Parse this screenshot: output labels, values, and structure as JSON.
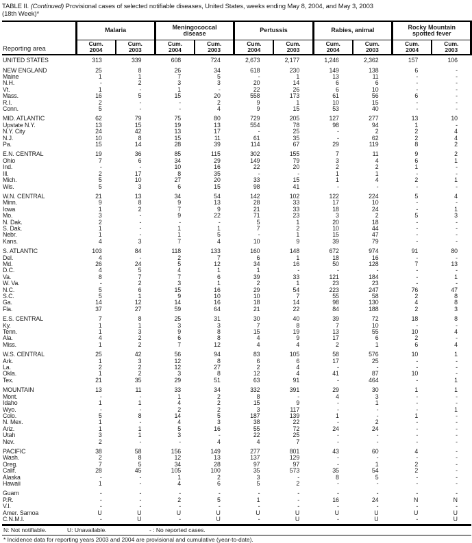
{
  "title": {
    "line1_prefix": "TABLE II. ",
    "line1_italic": "(Continued)",
    "line1_rest": " Provisional cases of selected notifiable diseases, United States, weeks ending May 8, 2004, and May 3, 2003",
    "line2": "(18th Week)*"
  },
  "columns": {
    "reporting_area_label": "Reporting area",
    "cum_label": "Cum.",
    "years": [
      "2004",
      "2003"
    ],
    "groups": [
      {
        "id": "malaria",
        "name": "Malaria"
      },
      {
        "id": "meningococcal-disease",
        "name": "Meningococcal\ndisease"
      },
      {
        "id": "pertussis",
        "name": "Pertussis"
      },
      {
        "id": "rabies-animal",
        "name": "Rabies, animal"
      },
      {
        "id": "rocky-mountain-spotted-fever",
        "name": "Rocky Mountain\nspotted fever"
      }
    ]
  },
  "rows": [
    {
      "area": "UNITED STATES",
      "kind": "total",
      "gap_before": false,
      "values": [
        "313",
        "339",
        "608",
        "724",
        "2,673",
        "2,177",
        "1,246",
        "2,362",
        "157",
        "106"
      ]
    },
    {
      "area": "NEW ENGLAND",
      "kind": "region",
      "gap_before": true,
      "values": [
        "25",
        "8",
        "26",
        "34",
        "618",
        "230",
        "149",
        "138",
        "6",
        "-"
      ]
    },
    {
      "area": "Maine",
      "kind": "state",
      "gap_before": false,
      "values": [
        "1",
        "1",
        "7",
        "5",
        "-",
        "1",
        "13",
        "11",
        "-",
        "-"
      ]
    },
    {
      "area": "N.H.",
      "kind": "state",
      "gap_before": false,
      "values": [
        "-",
        "2",
        "3",
        "3",
        "20",
        "14",
        "6",
        "6",
        "-",
        "-"
      ]
    },
    {
      "area": "Vt.",
      "kind": "state",
      "gap_before": false,
      "values": [
        "1",
        "-",
        "1",
        "-",
        "22",
        "26",
        "6",
        "10",
        "-",
        "-"
      ]
    },
    {
      "area": "Mass.",
      "kind": "state",
      "gap_before": false,
      "values": [
        "16",
        "5",
        "15",
        "20",
        "558",
        "173",
        "61",
        "56",
        "6",
        "-"
      ]
    },
    {
      "area": "R.I.",
      "kind": "state",
      "gap_before": false,
      "values": [
        "2",
        "-",
        "-",
        "2",
        "9",
        "1",
        "10",
        "15",
        "-",
        "-"
      ]
    },
    {
      "area": "Conn.",
      "kind": "state",
      "gap_before": false,
      "values": [
        "5",
        "-",
        "-",
        "4",
        "9",
        "15",
        "53",
        "40",
        "-",
        "-"
      ]
    },
    {
      "area": "MID. ATLANTIC",
      "kind": "region",
      "gap_before": true,
      "values": [
        "62",
        "79",
        "75",
        "80",
        "729",
        "205",
        "127",
        "277",
        "13",
        "10"
      ]
    },
    {
      "area": "Upstate N.Y.",
      "kind": "state",
      "gap_before": false,
      "values": [
        "13",
        "15",
        "19",
        "13",
        "554",
        "78",
        "98",
        "94",
        "1",
        "-"
      ]
    },
    {
      "area": "N.Y. City",
      "kind": "state",
      "gap_before": false,
      "values": [
        "24",
        "42",
        "13",
        "17",
        "-",
        "25",
        "-",
        "2",
        "2",
        "4"
      ]
    },
    {
      "area": "N.J.",
      "kind": "state",
      "gap_before": false,
      "values": [
        "10",
        "8",
        "15",
        "11",
        "61",
        "35",
        "-",
        "62",
        "2",
        "4"
      ]
    },
    {
      "area": "Pa.",
      "kind": "state",
      "gap_before": false,
      "values": [
        "15",
        "14",
        "28",
        "39",
        "114",
        "67",
        "29",
        "119",
        "8",
        "2"
      ]
    },
    {
      "area": "E.N. CENTRAL",
      "kind": "region",
      "gap_before": true,
      "values": [
        "19",
        "36",
        "85",
        "115",
        "302",
        "155",
        "7",
        "11",
        "9",
        "2"
      ]
    },
    {
      "area": "Ohio",
      "kind": "state",
      "gap_before": false,
      "values": [
        "7",
        "6",
        "34",
        "29",
        "149",
        "79",
        "3",
        "4",
        "6",
        "1"
      ]
    },
    {
      "area": "Ind.",
      "kind": "state",
      "gap_before": false,
      "values": [
        "-",
        "-",
        "10",
        "16",
        "22",
        "20",
        "2",
        "2",
        "1",
        "-"
      ]
    },
    {
      "area": "Ill.",
      "kind": "state",
      "gap_before": false,
      "values": [
        "2",
        "17",
        "8",
        "35",
        "-",
        "-",
        "1",
        "1",
        "-",
        "-"
      ]
    },
    {
      "area": "Mich.",
      "kind": "state",
      "gap_before": false,
      "values": [
        "5",
        "10",
        "27",
        "20",
        "33",
        "15",
        "1",
        "4",
        "2",
        "1"
      ]
    },
    {
      "area": "Wis.",
      "kind": "state",
      "gap_before": false,
      "values": [
        "5",
        "3",
        "6",
        "15",
        "98",
        "41",
        "-",
        "-",
        "-",
        "-"
      ]
    },
    {
      "area": "W.N. CENTRAL",
      "kind": "region",
      "gap_before": true,
      "values": [
        "21",
        "13",
        "34",
        "54",
        "142",
        "102",
        "122",
        "224",
        "5",
        "4"
      ]
    },
    {
      "area": "Minn.",
      "kind": "state",
      "gap_before": false,
      "values": [
        "9",
        "8",
        "9",
        "13",
        "28",
        "33",
        "17",
        "10",
        "-",
        "-"
      ]
    },
    {
      "area": "Iowa",
      "kind": "state",
      "gap_before": false,
      "values": [
        "1",
        "2",
        "7",
        "9",
        "21",
        "33",
        "18",
        "24",
        "-",
        "1"
      ]
    },
    {
      "area": "Mo.",
      "kind": "state",
      "gap_before": false,
      "values": [
        "3",
        "-",
        "9",
        "22",
        "71",
        "23",
        "3",
        "2",
        "5",
        "3"
      ]
    },
    {
      "area": "N. Dak.",
      "kind": "state",
      "gap_before": false,
      "values": [
        "2",
        "-",
        "-",
        "-",
        "5",
        "1",
        "20",
        "18",
        "-",
        "-"
      ]
    },
    {
      "area": "S. Dak.",
      "kind": "state",
      "gap_before": false,
      "values": [
        "1",
        "-",
        "1",
        "1",
        "7",
        "2",
        "10",
        "44",
        "-",
        "-"
      ]
    },
    {
      "area": "Nebr.",
      "kind": "state",
      "gap_before": false,
      "values": [
        "1",
        "-",
        "1",
        "5",
        "-",
        "1",
        "15",
        "47",
        "-",
        "-"
      ]
    },
    {
      "area": "Kans.",
      "kind": "state",
      "gap_before": false,
      "values": [
        "4",
        "3",
        "7",
        "4",
        "10",
        "9",
        "39",
        "79",
        "-",
        "-"
      ]
    },
    {
      "area": "S. ATLANTIC",
      "kind": "region",
      "gap_before": true,
      "values": [
        "103",
        "84",
        "118",
        "133",
        "160",
        "148",
        "672",
        "974",
        "91",
        "80"
      ]
    },
    {
      "area": "Del.",
      "kind": "state",
      "gap_before": false,
      "values": [
        "4",
        "-",
        "2",
        "7",
        "6",
        "1",
        "18",
        "16",
        "-",
        "-"
      ]
    },
    {
      "area": "Md.",
      "kind": "state",
      "gap_before": false,
      "values": [
        "26",
        "24",
        "5",
        "12",
        "34",
        "16",
        "50",
        "128",
        "7",
        "13"
      ]
    },
    {
      "area": "D.C.",
      "kind": "state",
      "gap_before": false,
      "values": [
        "4",
        "5",
        "4",
        "1",
        "1",
        "-",
        "-",
        "-",
        "-",
        "-"
      ]
    },
    {
      "area": "Va.",
      "kind": "state",
      "gap_before": false,
      "values": [
        "8",
        "7",
        "7",
        "6",
        "39",
        "33",
        "121",
        "184",
        "-",
        "1"
      ]
    },
    {
      "area": "W. Va.",
      "kind": "state",
      "gap_before": false,
      "values": [
        "-",
        "2",
        "3",
        "1",
        "2",
        "1",
        "23",
        "23",
        "-",
        "-"
      ]
    },
    {
      "area": "N.C.",
      "kind": "state",
      "gap_before": false,
      "values": [
        "5",
        "6",
        "15",
        "16",
        "29",
        "54",
        "223",
        "247",
        "76",
        "47"
      ]
    },
    {
      "area": "S.C.",
      "kind": "state",
      "gap_before": false,
      "values": [
        "5",
        "1",
        "9",
        "10",
        "10",
        "7",
        "55",
        "58",
        "2",
        "8"
      ]
    },
    {
      "area": "Ga.",
      "kind": "state",
      "gap_before": false,
      "values": [
        "14",
        "12",
        "14",
        "16",
        "18",
        "14",
        "98",
        "130",
        "4",
        "8"
      ]
    },
    {
      "area": "Fla.",
      "kind": "state",
      "gap_before": false,
      "values": [
        "37",
        "27",
        "59",
        "64",
        "21",
        "22",
        "84",
        "188",
        "2",
        "3"
      ]
    },
    {
      "area": "E.S. CENTRAL",
      "kind": "region",
      "gap_before": true,
      "values": [
        "7",
        "8",
        "25",
        "31",
        "30",
        "40",
        "39",
        "72",
        "18",
        "8"
      ]
    },
    {
      "area": "Ky.",
      "kind": "state",
      "gap_before": false,
      "values": [
        "1",
        "1",
        "3",
        "3",
        "7",
        "8",
        "7",
        "10",
        "-",
        "-"
      ]
    },
    {
      "area": "Tenn.",
      "kind": "state",
      "gap_before": false,
      "values": [
        "1",
        "3",
        "9",
        "8",
        "15",
        "19",
        "13",
        "55",
        "10",
        "4"
      ]
    },
    {
      "area": "Ala.",
      "kind": "state",
      "gap_before": false,
      "values": [
        "4",
        "2",
        "6",
        "8",
        "4",
        "9",
        "17",
        "6",
        "2",
        "-"
      ]
    },
    {
      "area": "Miss.",
      "kind": "state",
      "gap_before": false,
      "values": [
        "1",
        "2",
        "7",
        "12",
        "4",
        "4",
        "2",
        "1",
        "6",
        "4"
      ]
    },
    {
      "area": "W.S. CENTRAL",
      "kind": "region",
      "gap_before": true,
      "values": [
        "25",
        "42",
        "56",
        "94",
        "83",
        "105",
        "58",
        "576",
        "10",
        "1"
      ]
    },
    {
      "area": "Ark.",
      "kind": "state",
      "gap_before": false,
      "values": [
        "1",
        "3",
        "12",
        "8",
        "6",
        "6",
        "17",
        "25",
        "-",
        "-"
      ]
    },
    {
      "area": "La.",
      "kind": "state",
      "gap_before": false,
      "values": [
        "2",
        "2",
        "12",
        "27",
        "2",
        "4",
        "-",
        "-",
        "-",
        "-"
      ]
    },
    {
      "area": "Okla.",
      "kind": "state",
      "gap_before": false,
      "values": [
        "1",
        "2",
        "3",
        "8",
        "12",
        "4",
        "41",
        "87",
        "10",
        "-"
      ]
    },
    {
      "area": "Tex.",
      "kind": "state",
      "gap_before": false,
      "values": [
        "21",
        "35",
        "29",
        "51",
        "63",
        "91",
        "-",
        "464",
        "-",
        "1"
      ]
    },
    {
      "area": "MOUNTAIN",
      "kind": "region",
      "gap_before": true,
      "values": [
        "13",
        "11",
        "33",
        "34",
        "332",
        "391",
        "29",
        "30",
        "1",
        "1"
      ]
    },
    {
      "area": "Mont.",
      "kind": "state",
      "gap_before": false,
      "values": [
        "-",
        "-",
        "1",
        "2",
        "8",
        "-",
        "4",
        "3",
        "-",
        "-"
      ]
    },
    {
      "area": "Idaho",
      "kind": "state",
      "gap_before": false,
      "values": [
        "1",
        "1",
        "4",
        "2",
        "15",
        "9",
        "-",
        "1",
        "-",
        "-"
      ]
    },
    {
      "area": "Wyo.",
      "kind": "state",
      "gap_before": false,
      "values": [
        "-",
        "-",
        "2",
        "2",
        "3",
        "117",
        "-",
        "-",
        "-",
        "1"
      ]
    },
    {
      "area": "Colo.",
      "kind": "state",
      "gap_before": false,
      "values": [
        "5",
        "8",
        "14",
        "5",
        "187",
        "139",
        "1",
        "-",
        "1",
        "-"
      ]
    },
    {
      "area": "N. Mex.",
      "kind": "state",
      "gap_before": false,
      "values": [
        "1",
        "-",
        "4",
        "3",
        "38",
        "22",
        "-",
        "2",
        "-",
        "-"
      ]
    },
    {
      "area": "Ariz.",
      "kind": "state",
      "gap_before": false,
      "values": [
        "1",
        "1",
        "5",
        "16",
        "55",
        "72",
        "24",
        "24",
        "-",
        "-"
      ]
    },
    {
      "area": "Utah",
      "kind": "state",
      "gap_before": false,
      "values": [
        "3",
        "1",
        "3",
        "-",
        "22",
        "25",
        "-",
        "-",
        "-",
        "-"
      ]
    },
    {
      "area": "Nev.",
      "kind": "state",
      "gap_before": false,
      "values": [
        "2",
        "-",
        "-",
        "4",
        "4",
        "7",
        "-",
        "-",
        "-",
        "-"
      ]
    },
    {
      "area": "PACIFIC",
      "kind": "region",
      "gap_before": true,
      "values": [
        "38",
        "58",
        "156",
        "149",
        "277",
        "801",
        "43",
        "60",
        "4",
        "-"
      ]
    },
    {
      "area": "Wash.",
      "kind": "state",
      "gap_before": false,
      "values": [
        "2",
        "8",
        "12",
        "13",
        "137",
        "129",
        "-",
        "-",
        "-",
        "-"
      ]
    },
    {
      "area": "Oreg.",
      "kind": "state",
      "gap_before": false,
      "values": [
        "7",
        "5",
        "34",
        "28",
        "97",
        "97",
        "-",
        "1",
        "2",
        "-"
      ]
    },
    {
      "area": "Calif.",
      "kind": "state",
      "gap_before": false,
      "values": [
        "28",
        "45",
        "105",
        "100",
        "35",
        "573",
        "35",
        "54",
        "2",
        "-"
      ]
    },
    {
      "area": "Alaska",
      "kind": "state",
      "gap_before": false,
      "values": [
        "-",
        "-",
        "1",
        "2",
        "3",
        "-",
        "8",
        "5",
        "-",
        "-"
      ]
    },
    {
      "area": "Hawaii",
      "kind": "state",
      "gap_before": false,
      "values": [
        "1",
        "-",
        "4",
        "6",
        "5",
        "2",
        "-",
        "-",
        "-",
        "-"
      ]
    },
    {
      "area": "Guam",
      "kind": "territory",
      "gap_before": true,
      "values": [
        "-",
        "-",
        "-",
        "-",
        "-",
        "-",
        "-",
        "-",
        "-",
        "-"
      ]
    },
    {
      "area": "P.R.",
      "kind": "territory",
      "gap_before": false,
      "values": [
        "-",
        "-",
        "2",
        "5",
        "1",
        "-",
        "16",
        "24",
        "N",
        "N"
      ]
    },
    {
      "area": "V.I.",
      "kind": "territory",
      "gap_before": false,
      "values": [
        "-",
        "-",
        "-",
        "-",
        "-",
        "-",
        "-",
        "-",
        "-",
        "-"
      ]
    },
    {
      "area": "Amer. Samoa",
      "kind": "territory",
      "gap_before": false,
      "values": [
        "U",
        "U",
        "U",
        "U",
        "U",
        "U",
        "U",
        "U",
        "U",
        "U"
      ]
    },
    {
      "area": "C.N.M.I.",
      "kind": "territory",
      "gap_before": false,
      "values": [
        "-",
        "U",
        "-",
        "U",
        "-",
        "U",
        "-",
        "U",
        "-",
        "U"
      ]
    }
  ],
  "footnotes": {
    "not_notifiable": "N: Not notifiable.",
    "unavailable": "U: Unavailable.",
    "no_cases": "- : No reported cases.",
    "asterisk": "* Incidence data for reporting years 2003 and 2004 are provisional and cumulative (year-to-date)."
  }
}
